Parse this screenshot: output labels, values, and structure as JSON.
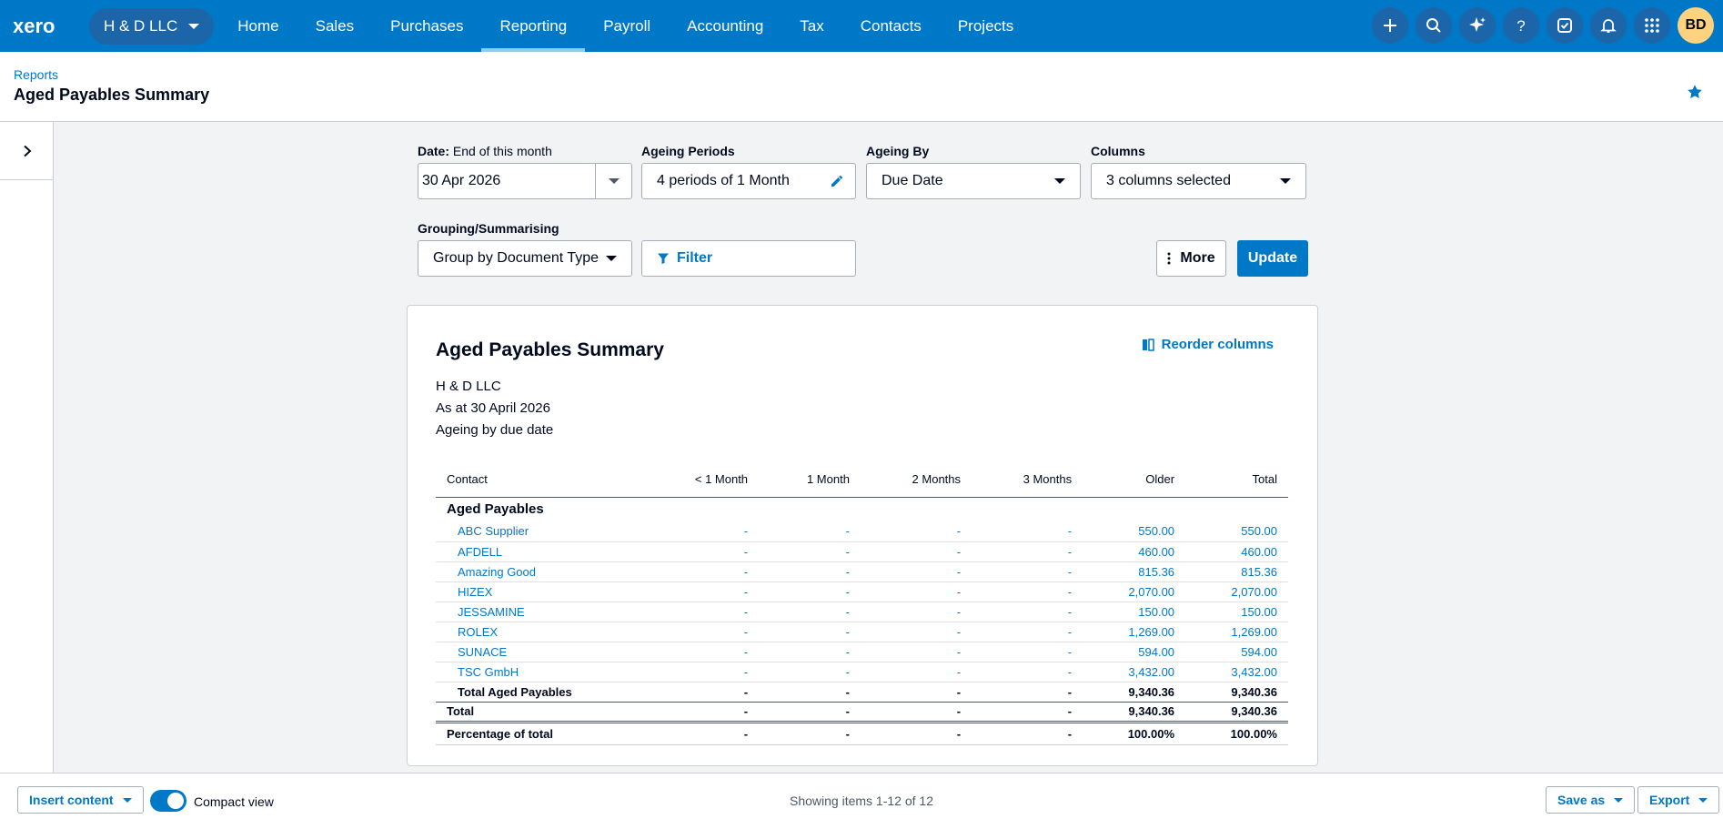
{
  "nav": {
    "org": "H & D LLC",
    "links": [
      "Home",
      "Sales",
      "Purchases",
      "Reporting",
      "Payroll",
      "Accounting",
      "Tax",
      "Contacts",
      "Projects"
    ],
    "avatar_initials": "BD",
    "icons": [
      "add-icon",
      "search-icon",
      "sparkle-icon",
      "help-icon",
      "tasks-icon",
      "notifications-icon",
      "apps-grid-icon"
    ]
  },
  "header": {
    "breadcrumb": "Reports",
    "title": "Aged Payables Summary"
  },
  "filters": {
    "date_label": "Date:",
    "date_sub": "End of this month",
    "date_value": "30 Apr 2026",
    "ageing_periods_label": "Ageing Periods",
    "ageing_periods_value": "4 periods of 1 Month",
    "ageing_by_label": "Ageing By",
    "ageing_by_value": "Due Date",
    "columns_label": "Columns",
    "columns_value": "3 columns selected",
    "grouping_label": "Grouping/Summarising",
    "grouping_value": "Group by Document Type",
    "filter_button": "Filter",
    "more_button": "More",
    "update_button": "Update"
  },
  "report": {
    "title": "Aged Payables Summary",
    "reorder": "Reorder columns",
    "org": "H & D LLC",
    "as_at": "As at 30 April 2026",
    "ageing_desc": "Ageing by due date",
    "columns": [
      "Contact",
      "< 1 Month",
      "1 Month",
      "2 Months",
      "3 Months",
      "Older",
      "Total"
    ],
    "group": "Aged Payables",
    "rows": [
      [
        "ABC Supplier",
        "-",
        "-",
        "-",
        "-",
        "550.00",
        "550.00"
      ],
      [
        "AFDELL",
        "-",
        "-",
        "-",
        "-",
        "460.00",
        "460.00"
      ],
      [
        "Amazing Good",
        "-",
        "-",
        "-",
        "-",
        "815.36",
        "815.36"
      ],
      [
        "HIZEX",
        "-",
        "-",
        "-",
        "-",
        "2,070.00",
        "2,070.00"
      ],
      [
        "JESSAMINE",
        "-",
        "-",
        "-",
        "-",
        "150.00",
        "150.00"
      ],
      [
        "ROLEX",
        "-",
        "-",
        "-",
        "-",
        "1,269.00",
        "1,269.00"
      ],
      [
        "SUNACE",
        "-",
        "-",
        "-",
        "-",
        "594.00",
        "594.00"
      ],
      [
        "TSC GmbH",
        "-",
        "-",
        "-",
        "-",
        "3,432.00",
        "3,432.00"
      ]
    ],
    "subtotal": [
      "Total Aged Payables",
      "-",
      "-",
      "-",
      "-",
      "9,340.36",
      "9,340.36"
    ],
    "total": [
      "Total",
      "-",
      "-",
      "-",
      "-",
      "9,340.36",
      "9,340.36"
    ],
    "pct": [
      "Percentage of total",
      "-",
      "-",
      "-",
      "-",
      "100.00%",
      "100.00%"
    ]
  },
  "footer": {
    "insert_content": "Insert content",
    "compact_view": "Compact view",
    "compact_view_on": true,
    "showing": "Showing items 1-12 of 12",
    "save_as": "Save as",
    "export": "Export"
  }
}
